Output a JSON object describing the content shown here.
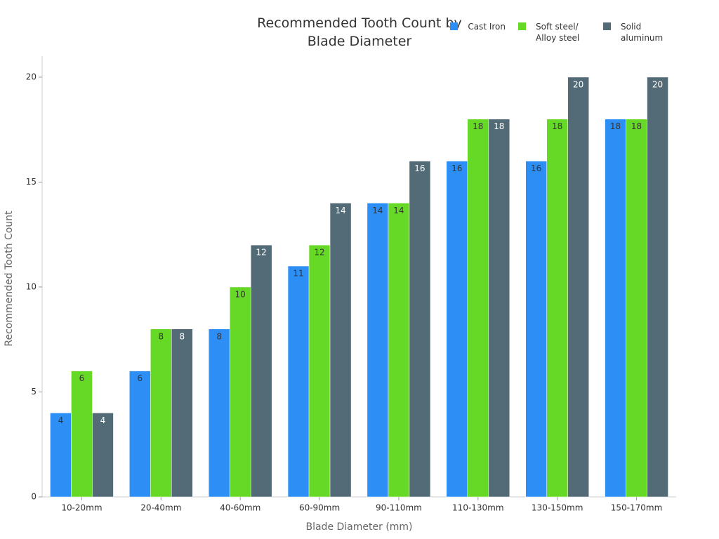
{
  "chart_data": {
    "type": "bar",
    "title": "Recommended Tooth Count by Blade Diameter",
    "x_label": "Blade Diameter (mm)",
    "y_label": "Recommended Tooth Count",
    "categories": [
      "10-20mm",
      "20-40mm",
      "40-60mm",
      "60-90mm",
      "90-110mm",
      "110-130mm",
      "130-150mm",
      "150-170mm"
    ],
    "series": [
      {
        "name": "Cast Iron",
        "color": "#2d8ff5",
        "values": [
          4,
          6,
          8,
          11,
          14,
          16,
          16,
          18
        ]
      },
      {
        "name": "Soft steel/ Alloy steel",
        "color": "#66d926",
        "values": [
          6,
          8,
          10,
          12,
          14,
          18,
          18,
          18
        ]
      },
      {
        "name": "Solid aluminum",
        "color": "#536b77",
        "values": [
          4,
          8,
          12,
          14,
          16,
          18,
          20,
          20
        ]
      }
    ],
    "ylim": [
      0,
      21
    ],
    "yticks": [
      0,
      5,
      10,
      15,
      20
    ],
    "grid": false,
    "legend": "top-right"
  }
}
